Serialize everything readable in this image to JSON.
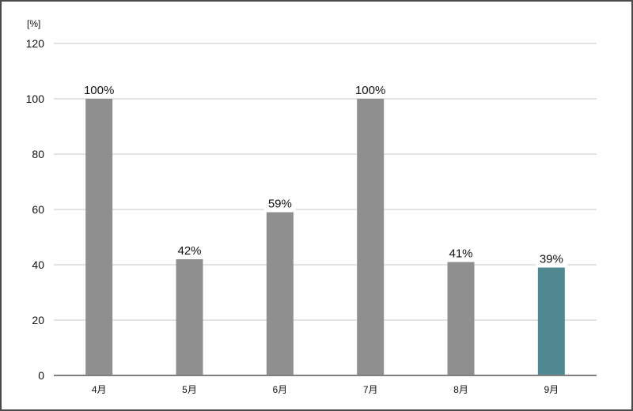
{
  "chart_data": {
    "type": "bar",
    "unit_label": "[%]",
    "categories": [
      "4月",
      "5月",
      "6月",
      "7月",
      "8月",
      "9月"
    ],
    "values": [
      100,
      42,
      59,
      100,
      41,
      39
    ],
    "data_labels": [
      "100%",
      "42%",
      "59%",
      "100%",
      "41%",
      "39%"
    ],
    "ylim": [
      0,
      120
    ],
    "yticks": [
      0,
      20,
      40,
      60,
      80,
      100,
      120
    ],
    "grid": true,
    "legend": "none",
    "colors": {
      "default_bar": "#8f8f8f",
      "highlight_bar": "#4f8890",
      "highlight_index": 5,
      "grid": "#c8c8c8",
      "axis": "#808080"
    }
  }
}
